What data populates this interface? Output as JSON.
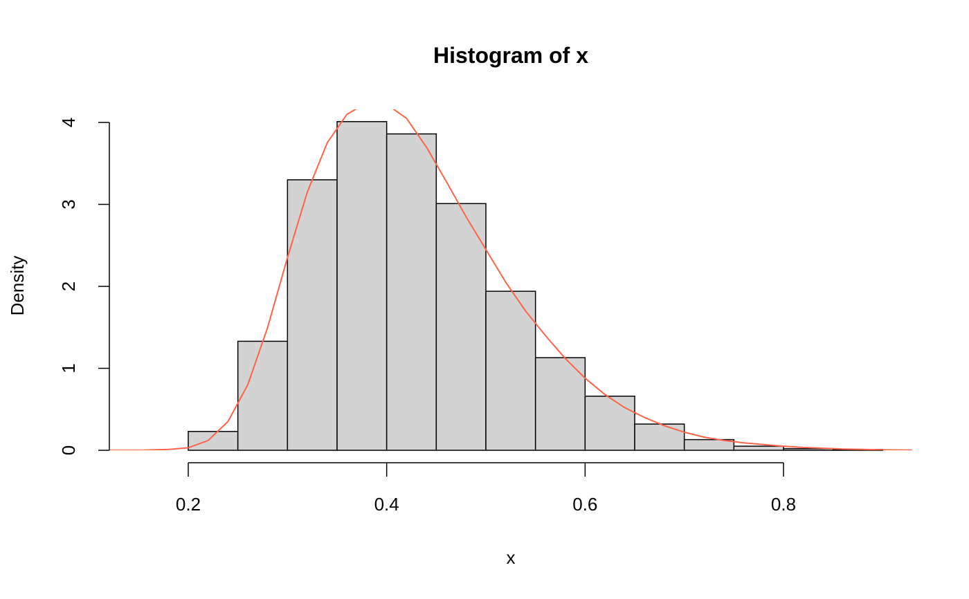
{
  "chart_data": {
    "type": "bar",
    "subtype": "histogram",
    "title": "Histogram of x",
    "xlabel": "x",
    "ylabel": "Density",
    "xlim": [
      0.12,
      0.93
    ],
    "ylim": [
      0,
      4.2
    ],
    "x_ticks": [
      {
        "value": 0.2,
        "label": "0.2"
      },
      {
        "value": 0.4,
        "label": "0.4"
      },
      {
        "value": 0.6,
        "label": "0.6"
      },
      {
        "value": 0.8,
        "label": "0.8"
      }
    ],
    "y_ticks": [
      {
        "value": 0,
        "label": "0"
      },
      {
        "value": 1,
        "label": "1"
      },
      {
        "value": 2,
        "label": "2"
      },
      {
        "value": 3,
        "label": "3"
      },
      {
        "value": 4,
        "label": "4"
      }
    ],
    "bins": [
      {
        "x0": 0.15,
        "x1": 0.2,
        "density": 0.0
      },
      {
        "x0": 0.2,
        "x1": 0.25,
        "density": 0.23
      },
      {
        "x0": 0.25,
        "x1": 0.3,
        "density": 1.33
      },
      {
        "x0": 0.3,
        "x1": 0.35,
        "density": 3.3
      },
      {
        "x0": 0.35,
        "x1": 0.4,
        "density": 4.01
      },
      {
        "x0": 0.4,
        "x1": 0.45,
        "density": 3.86
      },
      {
        "x0": 0.45,
        "x1": 0.5,
        "density": 3.01
      },
      {
        "x0": 0.5,
        "x1": 0.55,
        "density": 1.94
      },
      {
        "x0": 0.55,
        "x1": 0.6,
        "density": 1.13
      },
      {
        "x0": 0.6,
        "x1": 0.65,
        "density": 0.66
      },
      {
        "x0": 0.65,
        "x1": 0.7,
        "density": 0.32
      },
      {
        "x0": 0.7,
        "x1": 0.75,
        "density": 0.13
      },
      {
        "x0": 0.75,
        "x1": 0.8,
        "density": 0.05
      },
      {
        "x0": 0.8,
        "x1": 0.85,
        "density": 0.02
      },
      {
        "x0": 0.85,
        "x1": 0.9,
        "density": 0.01
      }
    ],
    "density_curve": {
      "color": "#FF6347",
      "x": [
        0.12,
        0.15,
        0.18,
        0.2,
        0.22,
        0.24,
        0.26,
        0.28,
        0.3,
        0.32,
        0.34,
        0.36,
        0.38,
        0.4,
        0.42,
        0.44,
        0.46,
        0.48,
        0.5,
        0.52,
        0.54,
        0.56,
        0.58,
        0.6,
        0.62,
        0.64,
        0.66,
        0.68,
        0.7,
        0.72,
        0.74,
        0.76,
        0.78,
        0.8,
        0.82,
        0.84,
        0.86,
        0.88,
        0.9,
        0.93
      ],
      "y": [
        0.0,
        0.0,
        0.01,
        0.03,
        0.12,
        0.35,
        0.8,
        1.5,
        2.35,
        3.15,
        3.75,
        4.1,
        4.24,
        4.22,
        4.05,
        3.7,
        3.28,
        2.85,
        2.45,
        2.05,
        1.7,
        1.4,
        1.12,
        0.88,
        0.68,
        0.52,
        0.4,
        0.3,
        0.22,
        0.16,
        0.12,
        0.09,
        0.07,
        0.05,
        0.035,
        0.025,
        0.015,
        0.01,
        0.005,
        0.002
      ]
    },
    "colors": {
      "bar_fill": "#D3D3D3",
      "bar_stroke": "#000000",
      "axis": "#000000"
    },
    "grid": false,
    "legend": "none"
  }
}
